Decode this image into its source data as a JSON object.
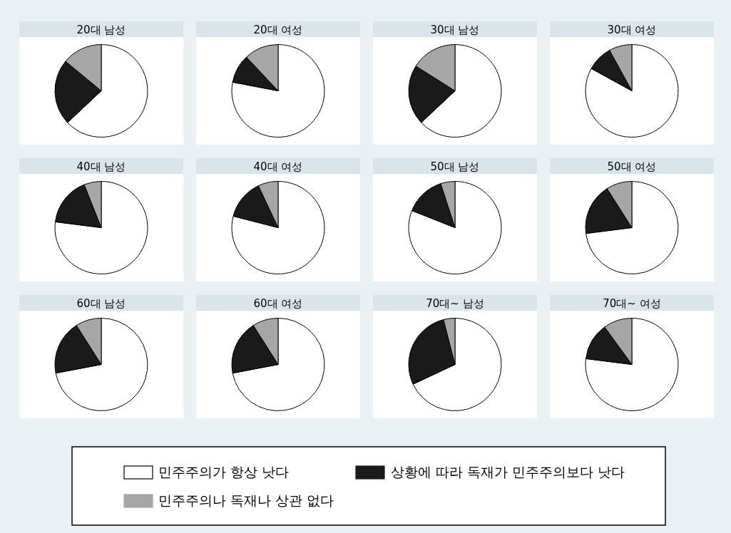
{
  "chart_data": [
    {
      "type": "pie",
      "title": "20대 남성",
      "categories": [
        "민주주의가 항상 낫다",
        "상황에 따라 독재가 민주주의보다 낫다",
        "민주주의나 독재나 상관 없다"
      ],
      "values": [
        63,
        23,
        14
      ],
      "colors": [
        "#ffffff",
        "#1a1a1a",
        "#a6a6a6"
      ],
      "legend": "bottom"
    },
    {
      "type": "pie",
      "title": "20대 여성",
      "categories": [
        null,
        null,
        null
      ],
      "values": [
        78,
        10,
        12
      ],
      "colors": [
        "#ffffff",
        "#1a1a1a",
        "#a6a6a6"
      ]
    },
    {
      "type": "pie",
      "title": "30대 남성",
      "categories": [
        null,
        null,
        null
      ],
      "values": [
        63,
        21,
        16
      ],
      "colors": [
        "#ffffff",
        "#1a1a1a",
        "#a6a6a6"
      ]
    },
    {
      "type": "pie",
      "title": "30대 여성",
      "categories": [
        null,
        null,
        null
      ],
      "values": [
        83,
        9,
        8
      ],
      "colors": [
        "#ffffff",
        "#1a1a1a",
        "#a6a6a6"
      ]
    },
    {
      "type": "pie",
      "title": "40대 남성",
      "categories": [
        null,
        null,
        null
      ],
      "values": [
        77,
        17,
        6
      ],
      "colors": [
        "#ffffff",
        "#1a1a1a",
        "#a6a6a6"
      ]
    },
    {
      "type": "pie",
      "title": "40대 여성",
      "categories": [
        null,
        null,
        null
      ],
      "values": [
        79,
        14,
        7
      ],
      "colors": [
        "#ffffff",
        "#1a1a1a",
        "#a6a6a6"
      ]
    },
    {
      "type": "pie",
      "title": "50대 남성",
      "categories": [
        null,
        null,
        null
      ],
      "values": [
        81,
        14,
        5
      ],
      "colors": [
        "#ffffff",
        "#1a1a1a",
        "#a6a6a6"
      ]
    },
    {
      "type": "pie",
      "title": "50대 여성",
      "categories": [
        null,
        null,
        null
      ],
      "values": [
        73,
        18,
        9
      ],
      "colors": [
        "#ffffff",
        "#1a1a1a",
        "#a6a6a6"
      ]
    },
    {
      "type": "pie",
      "title": "60대 남성",
      "categories": [
        null,
        null,
        null
      ],
      "values": [
        72,
        19,
        9
      ],
      "colors": [
        "#ffffff",
        "#1a1a1a",
        "#a6a6a6"
      ]
    },
    {
      "type": "pie",
      "title": "60대 여성",
      "categories": [
        null,
        null,
        null
      ],
      "values": [
        72,
        19,
        9
      ],
      "colors": [
        "#ffffff",
        "#1a1a1a",
        "#a6a6a6"
      ]
    },
    {
      "type": "pie",
      "title": "70대~ 남성",
      "categories": [
        null,
        null,
        null
      ],
      "values": [
        68,
        28,
        4
      ],
      "colors": [
        "#ffffff",
        "#1a1a1a",
        "#a6a6a6"
      ]
    },
    {
      "type": "pie",
      "title": "70대~ 여성",
      "categories": [
        null,
        null,
        null
      ],
      "values": [
        77,
        13,
        10
      ],
      "colors": [
        "#ffffff",
        "#1a1a1a",
        "#a6a6a6"
      ]
    }
  ]
}
